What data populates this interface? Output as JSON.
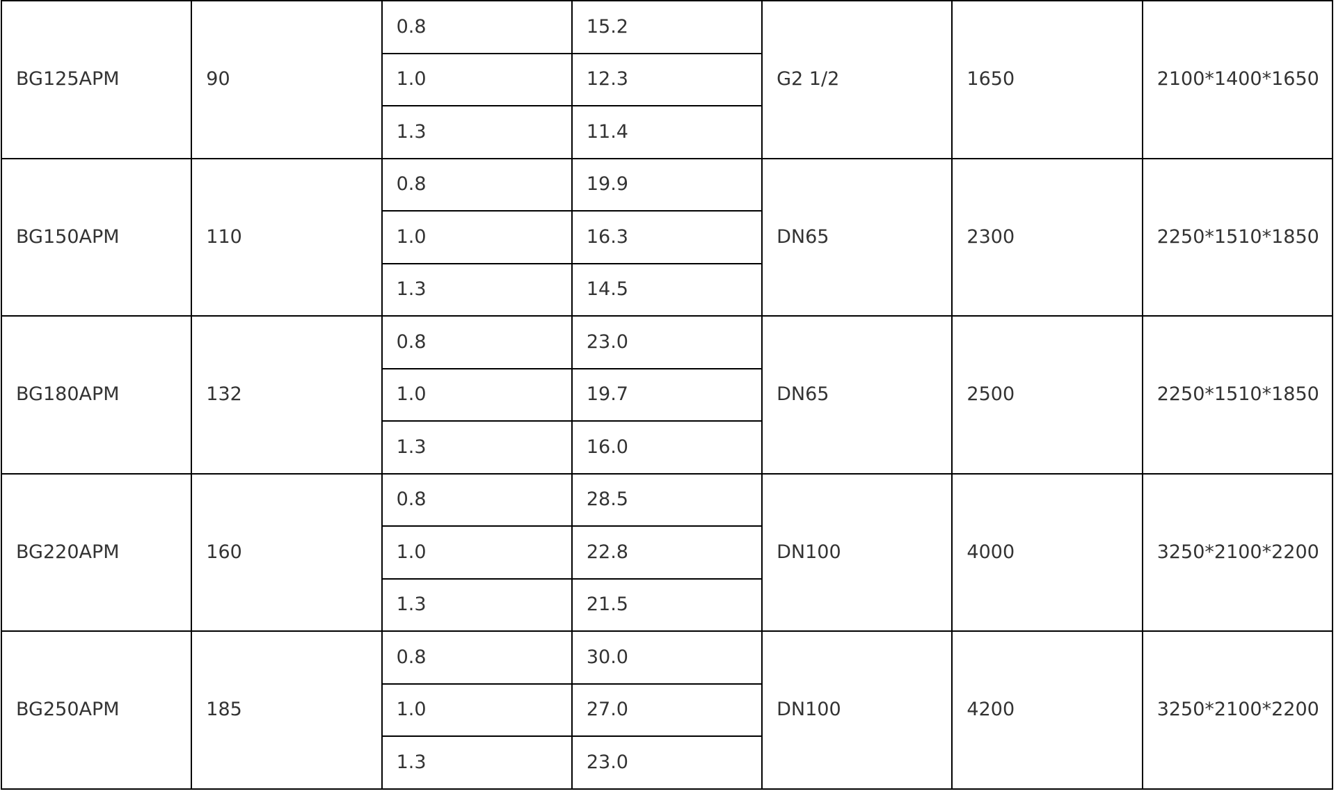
{
  "rows": [
    {
      "model": "BG125APM",
      "power": "90",
      "sub": [
        [
          "0.8",
          "15.2"
        ],
        [
          "1.0",
          "12.3"
        ],
        [
          "1.3",
          "11.4"
        ]
      ],
      "outlet": "G2  1/2",
      "weight": "1650",
      "dimensions": "2100*1400*1650"
    },
    {
      "model": "BG150APM",
      "power": "110",
      "sub": [
        [
          "0.8",
          "19.9"
        ],
        [
          "1.0",
          "16.3"
        ],
        [
          "1.3",
          "14.5"
        ]
      ],
      "outlet": "DN65",
      "weight": "2300",
      "dimensions": "2250*1510*1850"
    },
    {
      "model": "BG180APM",
      "power": "132",
      "sub": [
        [
          "0.8",
          "23.0"
        ],
        [
          "1.0",
          "19.7"
        ],
        [
          "1.3",
          "16.0"
        ]
      ],
      "outlet": "DN65",
      "weight": "2500",
      "dimensions": "2250*1510*1850"
    },
    {
      "model": "BG220APM",
      "power": "160",
      "sub": [
        [
          "0.8",
          "28.5"
        ],
        [
          "1.0",
          "22.8"
        ],
        [
          "1.3",
          "21.5"
        ]
      ],
      "outlet": "DN100",
      "weight": "4000",
      "dimensions": "3250*2100*2200"
    },
    {
      "model": "BG250APM",
      "power": "185",
      "sub": [
        [
          "0.8",
          "30.0"
        ],
        [
          "1.0",
          "27.0"
        ],
        [
          "1.3",
          "23.0"
        ]
      ],
      "outlet": "DN100",
      "weight": "4200",
      "dimensions": "3250*2100*2200"
    }
  ]
}
